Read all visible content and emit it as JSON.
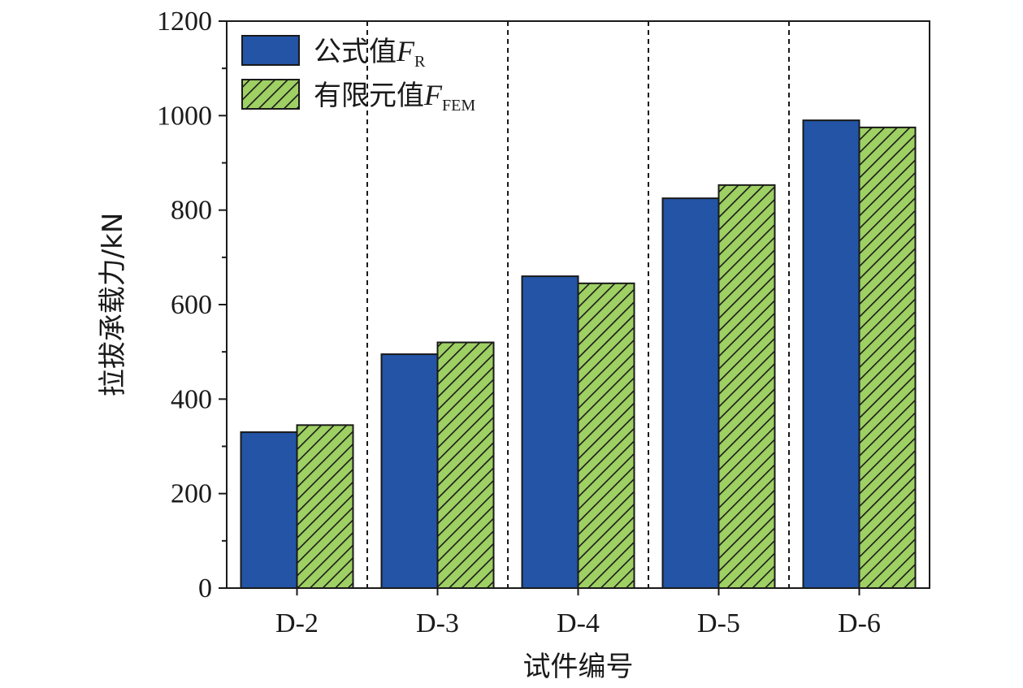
{
  "chart_data": {
    "type": "bar",
    "categories": [
      "D-2",
      "D-3",
      "D-4",
      "D-5",
      "D-6"
    ],
    "series": [
      {
        "name": "公式值F_R",
        "label_prefix": "公式值",
        "label_symbol": "F",
        "label_subscript": "R",
        "color": "#2354a6",
        "pattern": "solid",
        "values": [
          330,
          495,
          660,
          825,
          990
        ]
      },
      {
        "name": "有限元值F_FEM",
        "label_prefix": "有限元值",
        "label_symbol": "F",
        "label_subscript": "FEM",
        "color": "#9ed063",
        "pattern": "hatch",
        "values": [
          345,
          520,
          645,
          853,
          975
        ]
      }
    ],
    "xlabel": "试件编号",
    "ylabel": "拉拔承载力/kN",
    "ylim": [
      0,
      1200
    ],
    "yticks": [
      0,
      200,
      400,
      600,
      800,
      1000,
      1200
    ],
    "grid": false,
    "separators": "dashed vertical lines between categories",
    "legend_position": "top-left"
  }
}
